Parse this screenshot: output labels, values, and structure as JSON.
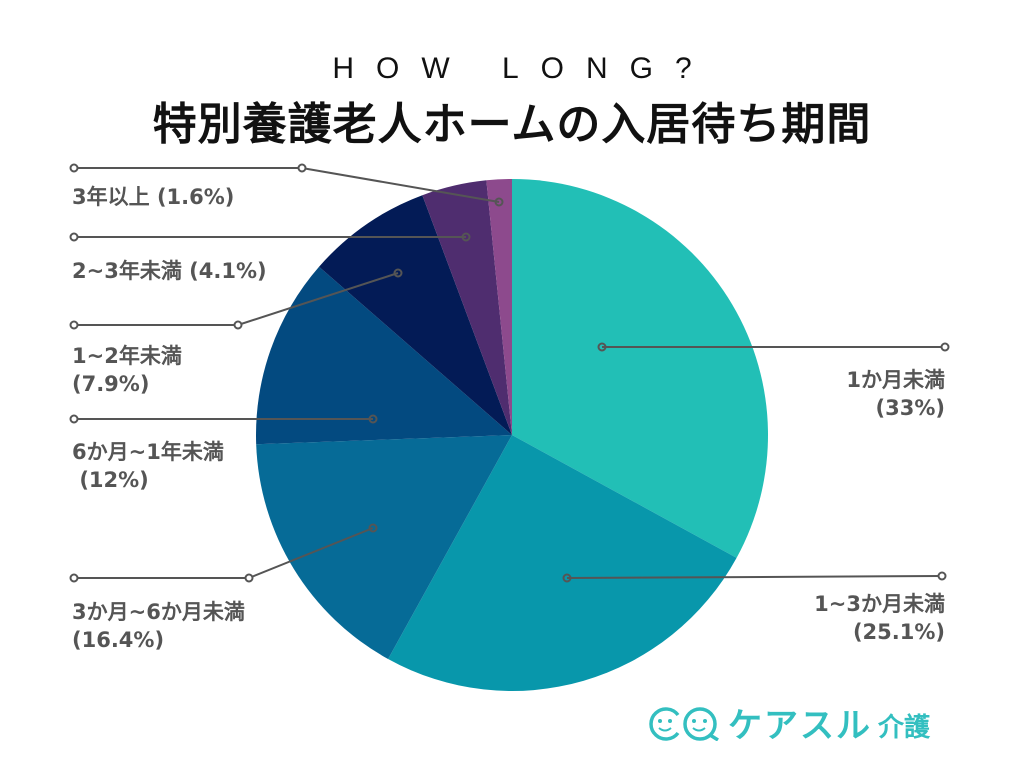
{
  "chart_data": {
    "type": "pie",
    "subtitle": "HOW LONG?",
    "title": "特別養護老人ホームの入居待ち期間",
    "start": "top",
    "direction": "clockwise",
    "slices": [
      {
        "label": "1か月未満",
        "value": 33,
        "value_label": "(33%)",
        "color": "#22bfb6"
      },
      {
        "label": "1~3か月未満",
        "value": 25.1,
        "value_label": "(25.1%)",
        "color": "#0897ab"
      },
      {
        "label": "3か月~6か月未満",
        "value": 16.4,
        "value_label": "(16.4%)",
        "color": "#066b97"
      },
      {
        "label": "6か月~1年未満",
        "value": 12,
        "value_label": "(12%)",
        "color": "#034a80"
      },
      {
        "label": "1~2年未満",
        "value": 7.9,
        "value_label": "(7.9%)",
        "color": "#031b56"
      },
      {
        "label": "2~3年未満",
        "value": 4.1,
        "value_label": "(4.1%)",
        "color": "#4f2d6f"
      },
      {
        "label": "3年以上",
        "value": 1.6,
        "value_label": "(1.6%)",
        "color": "#8d4a8d"
      }
    ]
  },
  "logo": {
    "brand": "ケアスル",
    "sub": "介護",
    "color": "#33bfc0"
  }
}
